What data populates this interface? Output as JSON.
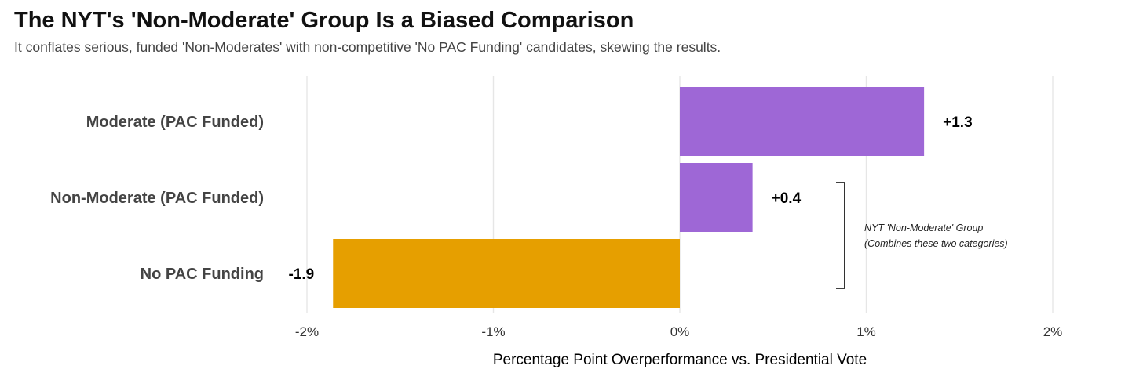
{
  "chart_data": {
    "type": "bar",
    "orientation": "horizontal",
    "title": "The NYT's 'Non-Moderate' Group Is a Biased Comparison",
    "subtitle": "It conflates serious, funded 'Non-Moderates' with non-competitive 'No PAC Funding' candidates, skewing the results.",
    "xlabel": "Percentage Point Overperformance vs. Presidential Vote",
    "ylabel": "",
    "xlim": [
      -2.2,
      2.1
    ],
    "ticks": [
      -2,
      -1,
      0,
      1,
      2
    ],
    "tick_labels": [
      "-2%",
      "-1%",
      "0%",
      "1%",
      "2%"
    ],
    "grid": true,
    "categories": [
      "Moderate (PAC Funded)",
      "Non-Moderate (PAC Funded)",
      "No PAC Funding"
    ],
    "values": [
      1.31,
      0.39,
      -1.86
    ],
    "value_labels": [
      "+1.3",
      "+0.4",
      "-1.9"
    ],
    "colors": [
      "#9e67d6",
      "#9e67d6",
      "#e69f00"
    ],
    "annotation": {
      "line1": "NYT 'Non-Moderate' Group",
      "line2": "(Combines these two categories)",
      "spans_categories": [
        "Non-Moderate (PAC Funded)",
        "No PAC Funding"
      ]
    }
  }
}
